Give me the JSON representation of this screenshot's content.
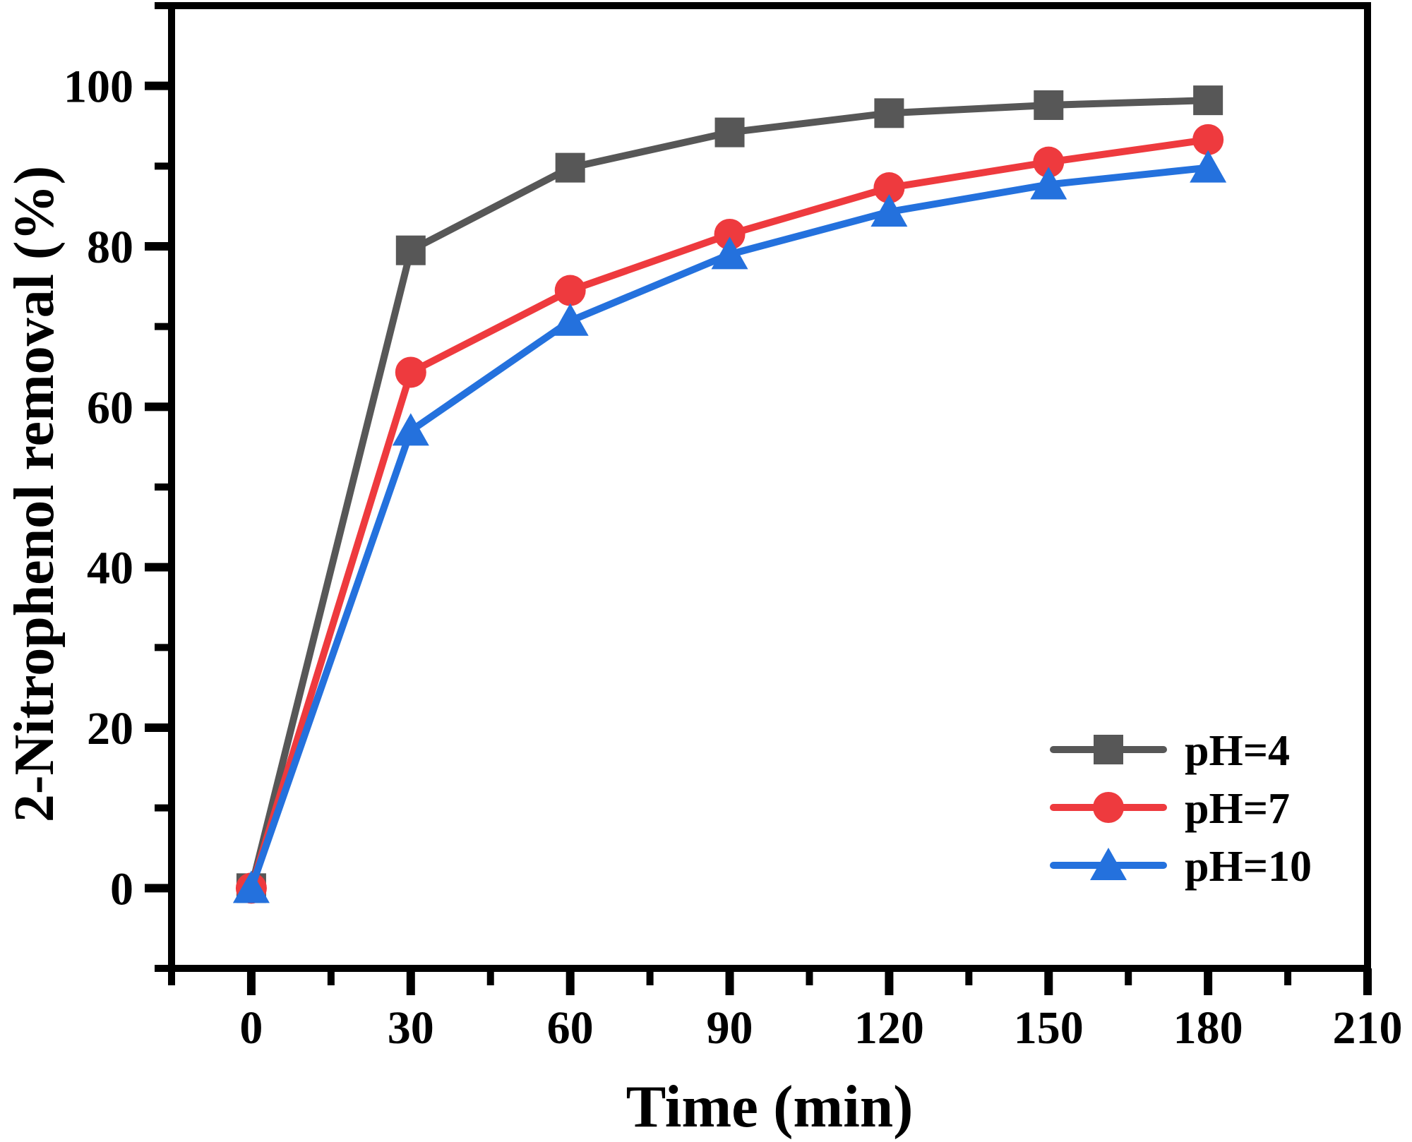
{
  "figure": {
    "background": "#ffffff",
    "frame_color": "#000000"
  },
  "chart_data": {
    "type": "line",
    "title": "",
    "xlabel": "Time (min)",
    "ylabel": "2-Nitrophenol removal (%)",
    "x": [
      0,
      30,
      60,
      90,
      120,
      150,
      180
    ],
    "series": [
      {
        "name": "pH=4",
        "color": "#575757",
        "marker": "square",
        "values": [
          0,
          79.5,
          89.8,
          94.2,
          96.6,
          97.6,
          98.2
        ]
      },
      {
        "name": "pH=7",
        "color": "#ee3a3e",
        "marker": "circle",
        "values": [
          0,
          64.3,
          74.5,
          81.5,
          87.3,
          90.5,
          93.3
        ]
      },
      {
        "name": "pH=10",
        "color": "#2471dd",
        "marker": "triangle",
        "values": [
          0,
          57.0,
          70.7,
          79.0,
          84.3,
          87.7,
          89.8
        ]
      }
    ],
    "xlim": [
      -15,
      210
    ],
    "ylim": [
      -10,
      110
    ],
    "x_ticks": [
      0,
      30,
      60,
      90,
      120,
      150,
      180,
      210
    ],
    "y_ticks": [
      0,
      20,
      40,
      60,
      80,
      100
    ],
    "x_minor_step": 15,
    "y_minor_step": 10,
    "grid": false,
    "legend_position": "lower right",
    "legend_entries": [
      "pH=4",
      "pH=7",
      "pH=10"
    ]
  }
}
